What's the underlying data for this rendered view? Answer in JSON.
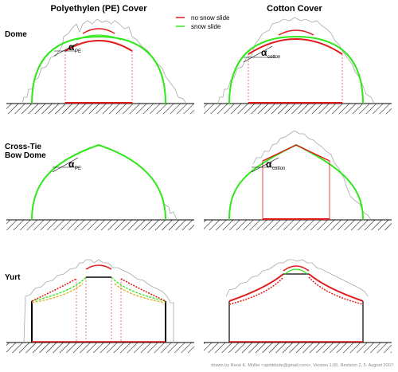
{
  "columns": {
    "left": "Polyethylen (PE) Cover",
    "right": "Cotton Cover"
  },
  "legend": {
    "no_slide_label": "no snow slide",
    "slide_label": "snow slide",
    "no_slide_color": "#e01b1b",
    "slide_color": "#2ee81a"
  },
  "rows": {
    "dome": "Dome",
    "crosstie_line1": "Cross-Tie",
    "crosstie_line2": "Bow Dome",
    "yurt": "Yurt"
  },
  "angles": {
    "symbol": "α",
    "pe_sub": "PE",
    "cotton_sub": "cotton"
  },
  "credit": "drawn by René K. Müller <spiritdude@gmail.com>, Version 1.00, Revision 2, 5. August 2007"
}
